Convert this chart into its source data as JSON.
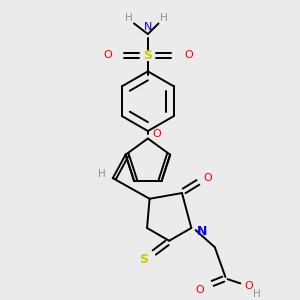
{
  "bg_color": "#ebebeb",
  "atom_colors": {
    "C": "#000000",
    "H": "#7a9a9a",
    "N": "#0000ff",
    "O": "#ff0000",
    "S": "#cccc00"
  },
  "bond_color": "#000000",
  "line_width": 1.4,
  "fig_size": [
    3.0,
    3.0
  ],
  "dpi": 100
}
